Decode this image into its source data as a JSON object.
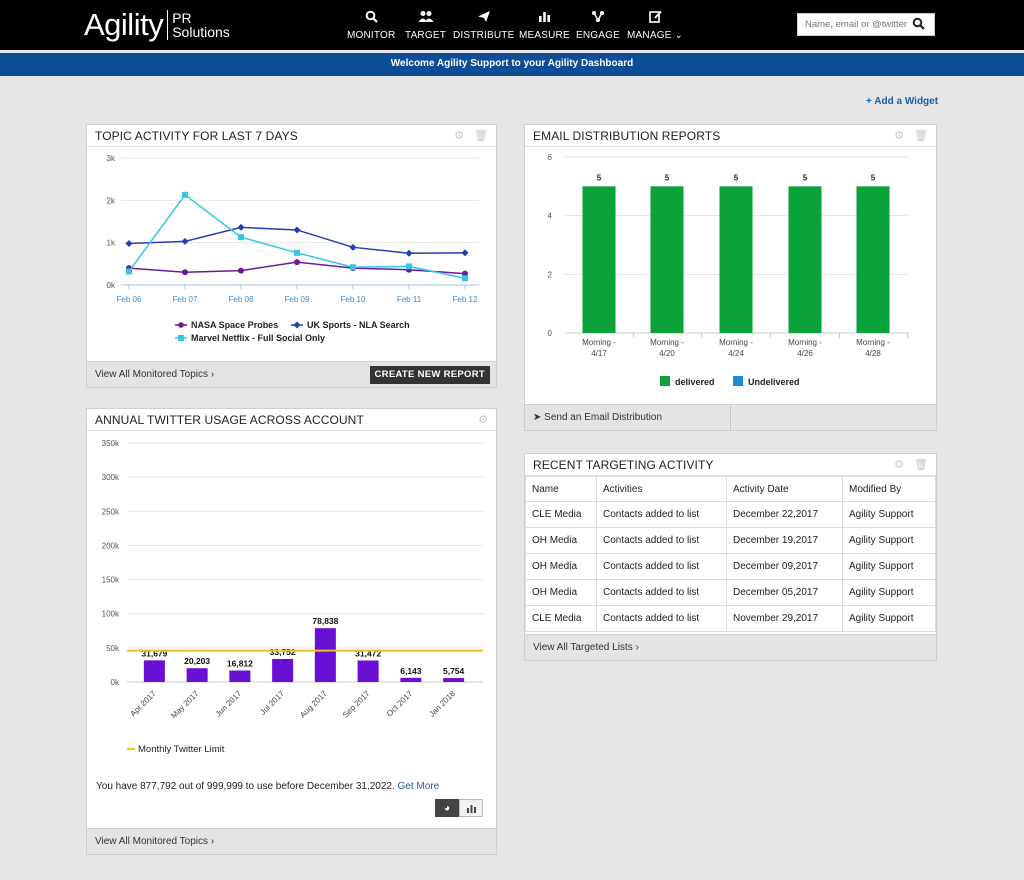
{
  "header": {
    "logo_main": "Agility",
    "logo_sub_1": "PR",
    "logo_sub_2": "Solutions",
    "nav": [
      {
        "label": "MONITOR",
        "icon": "search-icon"
      },
      {
        "label": "TARGET",
        "icon": "users-icon"
      },
      {
        "label": "DISTRIBUTE",
        "icon": "send-icon"
      },
      {
        "label": "MEASURE",
        "icon": "bar-chart-icon"
      },
      {
        "label": "ENGAGE",
        "icon": "network-icon"
      },
      {
        "label": "MANAGE",
        "icon": "edit-icon"
      }
    ],
    "search_placeholder": "Name, email or @twitter"
  },
  "welcome": "Welcome Agility Support to your Agility Dashboard",
  "add_widget": "Add a Widget",
  "topic_activity": {
    "title": "TOPIC ACTIVITY FOR LAST 7 DAYS",
    "footer_link": "View All Monitored Topics",
    "button": "CREATE NEW REPORT"
  },
  "email_reports": {
    "title": "EMAIL DISTRIBUTION REPORTS",
    "footer_link": "Send an Email Distribution"
  },
  "twitter_usage": {
    "title": "ANNUAL TWITTER USAGE ACROSS ACCOUNT",
    "limit_legend": "Monthly Twitter Limit",
    "usage_text": "You have 877,792 out of 999,999 to use before December 31,2022.",
    "get_more": "Get More",
    "footer_link": "View All Monitored Topics"
  },
  "targeting": {
    "title": "RECENT TARGETING ACTIVITY",
    "columns": [
      "Name",
      "Activities",
      "Activity Date",
      "Modified By"
    ],
    "rows": [
      [
        "CLE Media",
        "Contacts added to list",
        "December 22,2017",
        "Agility Support"
      ],
      [
        "OH Media",
        "Contacts added to list",
        "December 19,2017",
        "Agility Support"
      ],
      [
        "OH Media",
        "Contacts added to list",
        "December 09,2017",
        "Agility Support"
      ],
      [
        "OH Media",
        "Contacts added to list",
        "December 05,2017",
        "Agility Support"
      ],
      [
        "CLE Media",
        "Contacts added to list",
        "November 29,2017",
        "Agility Support"
      ]
    ],
    "footer_link": "View All Targeted Lists"
  },
  "colors": {
    "nav_bg": "#000000",
    "welcome_bar": "#0d4d95",
    "series_nasa": "#6a1b9a",
    "series_uk": "#2340b0",
    "series_marvel": "#33c6e6",
    "delivered": "#0aa23b",
    "undelivered": "#1e8ad6",
    "twitter_bar": "#6a0fd4",
    "limit_line": "#f2c21b"
  },
  "chart_data": [
    {
      "id": "topic",
      "type": "line",
      "categories": [
        "Feb 06",
        "Feb 07",
        "Feb 08",
        "Feb 09",
        "Feb 10",
        "Feb 11",
        "Feb 12"
      ],
      "y_ticks": [
        "0k",
        "1k",
        "2k",
        "3k"
      ],
      "ylim": [
        0,
        3000
      ],
      "series": [
        {
          "name": "NASA Space Probes",
          "values": [
            400,
            300,
            340,
            540,
            400,
            360,
            270
          ]
        },
        {
          "name": "UK Sports - NLA Search",
          "values": [
            980,
            1030,
            1360,
            1300,
            890,
            750,
            760
          ]
        },
        {
          "name": "Marvel Netflix - Full Social Only",
          "values": [
            320,
            2130,
            1130,
            760,
            420,
            440,
            160
          ]
        }
      ]
    },
    {
      "id": "email",
      "type": "bar",
      "categories": [
        "Morning - 4/17",
        "Morning - 4/20",
        "Morning - 4/24",
        "Morning - 4/26",
        "Morning - 4/28"
      ],
      "y_ticks": [
        "0",
        "2",
        "4",
        "6"
      ],
      "ylim": [
        0,
        6
      ],
      "series": [
        {
          "name": "delivered",
          "values": [
            5,
            5,
            5,
            5,
            5
          ],
          "labels": [
            "5",
            "5",
            "5",
            "5",
            "5"
          ]
        },
        {
          "name": "Undelivered",
          "values": [
            0,
            0,
            0,
            0,
            0
          ]
        }
      ]
    },
    {
      "id": "twitter",
      "type": "bar",
      "categories": [
        "Apr 2017",
        "May 2017",
        "Jun 2017",
        "Jul 2017",
        "Aug 2017",
        "Sep 2017",
        "Oct 2017",
        "Jan 2018"
      ],
      "values": [
        31679,
        20203,
        16812,
        33752,
        78838,
        31472,
        6143,
        5754
      ],
      "value_labels": [
        "31,679",
        "20,203",
        "16,812",
        "33,752",
        "78,838",
        "31,472",
        "6,143",
        "5,754"
      ],
      "y_ticks": [
        "0k",
        "50k",
        "100k",
        "150k",
        "200k",
        "250k",
        "300k",
        "350k"
      ],
      "ylim": [
        0,
        350000
      ],
      "limit": 46000,
      "limit_name": "Monthly Twitter Limit"
    }
  ]
}
